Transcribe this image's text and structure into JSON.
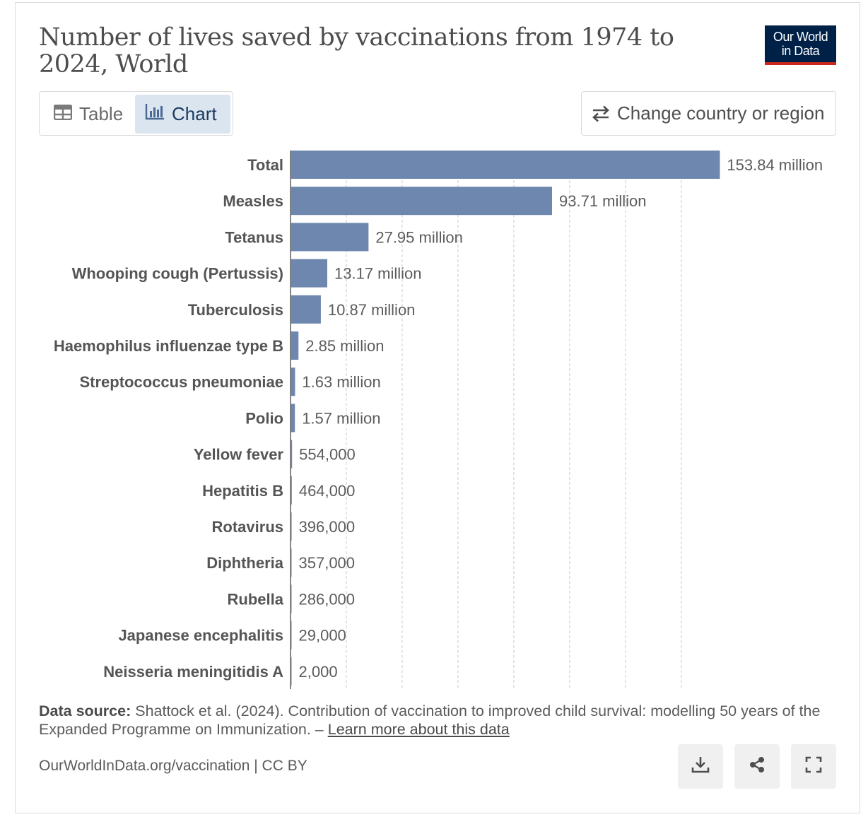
{
  "header": {
    "title": "Number of lives saved by vaccinations from 1974 to 2024, World",
    "logo_line1": "Our World",
    "logo_line2": "in Data"
  },
  "tabs": {
    "table_label": "Table",
    "chart_label": "Chart"
  },
  "change_region_label": "Change country or region",
  "chart_data": {
    "type": "bar",
    "orientation": "horizontal",
    "title": "Number of lives saved by vaccinations from 1974 to 2024, World",
    "categories": [
      "Total",
      "Measles",
      "Tetanus",
      "Whooping cough (Pertussis)",
      "Tuberculosis",
      "Haemophilus influenzae type B",
      "Streptococcus pneumoniae",
      "Polio",
      "Yellow fever",
      "Hepatitis B",
      "Rotavirus",
      "Diphtheria",
      "Rubella",
      "Japanese encephalitis",
      "Neisseria meningitidis A"
    ],
    "values": [
      153840000,
      93710000,
      27950000,
      13170000,
      10870000,
      2850000,
      1630000,
      1570000,
      554000,
      464000,
      396000,
      357000,
      286000,
      29000,
      2000
    ],
    "value_labels": [
      "153.84 million",
      "93.71 million",
      "27.95 million",
      "13.17 million",
      "10.87 million",
      "2.85 million",
      "1.63 million",
      "1.57 million",
      "554,000",
      "464,000",
      "396,000",
      "357,000",
      "286,000",
      "29,000",
      "2,000"
    ],
    "xlim": [
      0,
      155000000
    ],
    "grid_step": 20000000,
    "bar_color": "#6d87ae",
    "xlabel": "",
    "ylabel": ""
  },
  "source": {
    "prefix": "Data source:",
    "text": "Shattock et al. (2024). Contribution of vaccination to improved child survival: modelling 50 years of the Expanded Programme on Immunization. –",
    "link": "Learn more about this data"
  },
  "footer": {
    "url": "OurWorldInData.org/vaccination | CC BY"
  },
  "actions": [
    {
      "name": "download",
      "icon": "download-icon"
    },
    {
      "name": "share",
      "icon": "share-icon"
    },
    {
      "name": "fullscreen",
      "icon": "fullscreen-icon"
    }
  ]
}
